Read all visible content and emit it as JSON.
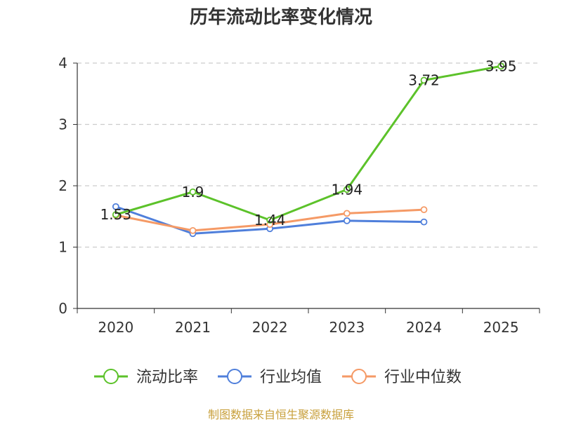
{
  "chart_data": {
    "type": "line",
    "title": "历年流动比率变化情况",
    "categories": [
      "2020",
      "2021",
      "2022",
      "2023",
      "2024",
      "2025"
    ],
    "ylim": [
      0,
      4
    ],
    "yticks": [
      0,
      1,
      2,
      3,
      4
    ],
    "grid": true,
    "legend_position": "bottom",
    "series": [
      {
        "name": "流动比率",
        "color": "#5cc22a",
        "values": [
          1.53,
          1.9,
          1.44,
          1.94,
          3.72,
          3.95
        ],
        "labels": [
          "1.53",
          "1.9",
          "1.44",
          "1.94",
          "3.72",
          "3.95"
        ]
      },
      {
        "name": "行业均值",
        "color": "#4f7fdb",
        "values": [
          1.66,
          1.22,
          1.3,
          1.43,
          1.41,
          null
        ]
      },
      {
        "name": "行业中位数",
        "color": "#f59a66",
        "values": [
          1.52,
          1.27,
          1.37,
          1.55,
          1.61,
          null
        ]
      }
    ]
  },
  "source_note": "制图数据来自恒生聚源数据库"
}
